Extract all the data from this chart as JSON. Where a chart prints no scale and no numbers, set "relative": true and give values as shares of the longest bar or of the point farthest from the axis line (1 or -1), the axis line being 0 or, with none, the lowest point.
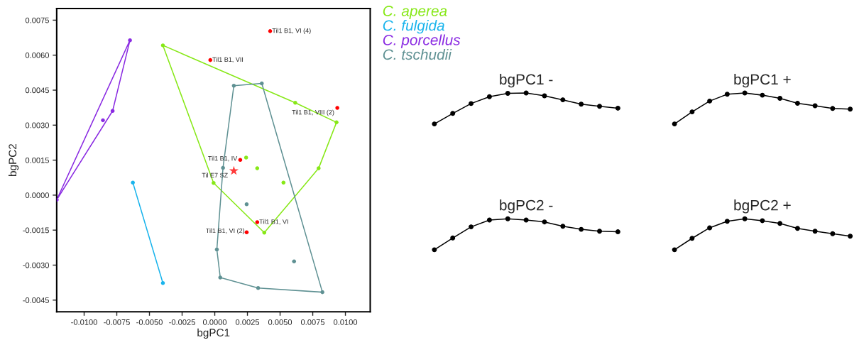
{
  "chart_data": [
    {
      "type": "scatter",
      "xlabel": "bgPC1",
      "ylabel": "bgPC2",
      "xlim": [
        -0.0121,
        0.0119
      ],
      "ylim": [
        -0.005,
        0.008
      ],
      "xticks": [
        {
          "value": -0.01,
          "label": "-0.0100"
        },
        {
          "value": -0.0075,
          "label": "-0.0075"
        },
        {
          "value": -0.005,
          "label": "-0.0050"
        },
        {
          "value": -0.0025,
          "label": "-0.0025"
        },
        {
          "value": 0,
          "label": "0.0000"
        },
        {
          "value": 0.0025,
          "label": "0.0025"
        },
        {
          "value": 0.005,
          "label": "0.0050"
        },
        {
          "value": 0.0075,
          "label": "0.0075"
        },
        {
          "value": 0.01,
          "label": "0.0100"
        }
      ],
      "yticks": [
        {
          "value": -0.0045,
          "label": "-0.0045"
        },
        {
          "value": -0.003,
          "label": "-0.0030"
        },
        {
          "value": -0.0015,
          "label": "-0.0015"
        },
        {
          "value": 0,
          "label": "0.0000"
        },
        {
          "value": 0.0015,
          "label": "0.0015"
        },
        {
          "value": 0.003,
          "label": "0.0030"
        },
        {
          "value": 0.0045,
          "label": "0.0045"
        },
        {
          "value": 0.006,
          "label": "0.0060"
        },
        {
          "value": 0.0075,
          "label": "0.0075"
        }
      ],
      "grid": false,
      "legend": "top right",
      "series": [
        {
          "type": "line",
          "color": "#87e817",
          "x": [
            -0.00397,
            0.00616,
            0.00932
          ],
          "values": [
            0.00642,
            0.00396,
            0.00312
          ]
        },
        {
          "type": "line",
          "color": "#87e817",
          "x": [
            -0.00397,
            -9e-05,
            0.00379,
            0.00795,
            0.00932
          ],
          "values": [
            0.00642,
            0.00052,
            -0.00161,
            0.00115,
            0.00312
          ]
        },
        {
          "type": "line",
          "color": "#1ab4ec",
          "x": [
            -0.00627,
            -0.00397
          ],
          "values": [
            0.00054,
            -0.00377
          ]
        },
        {
          "type": "line",
          "color": "#8a2be2",
          "x": [
            -0.0121,
            -0.00649
          ],
          "values": [
            -0.0002,
            0.00664
          ]
        },
        {
          "type": "line",
          "color": "#8a2be2",
          "x": [
            -0.0121,
            -0.00782,
            -0.00649
          ],
          "values": [
            -0.0002,
            0.00361,
            0.00664
          ]
        },
        {
          "type": "line",
          "color": "#5f9193",
          "x": [
            0.00016,
            0.00063,
            0.00146,
            0.0036,
            0.00824
          ],
          "values": [
            -0.00233,
            0.00117,
            0.00469,
            0.00479,
            -0.00416
          ]
        },
        {
          "type": "line",
          "color": "#5f9193",
          "x": [
            0.00016,
            0.00042,
            0.00332,
            0.00824
          ],
          "values": [
            -0.00233,
            -0.00353,
            -0.00398,
            -0.00416
          ]
        },
        {
          "type": "scatter",
          "name": "C. aperea",
          "color": "#87e817",
          "marker": "circle",
          "x": [
            -0.00397,
            0.00616,
            0.00932,
            0.00795,
            0.00379,
            -9e-05,
            0.0024,
            0.00325,
            0.00526
          ],
          "values": [
            0.00642,
            0.00396,
            0.00312,
            0.00115,
            -0.00161,
            0.00052,
            0.00161,
            0.00115,
            0.00054
          ]
        },
        {
          "type": "scatter",
          "name": "C. fulgida",
          "color": "#1ab4ec",
          "marker": "circle",
          "x": [
            -0.00627,
            -0.00397
          ],
          "values": [
            0.00054,
            -0.00377
          ]
        },
        {
          "type": "scatter",
          "name": "C. porcellus",
          "color": "#8a2be2",
          "marker": "circle",
          "x": [
            -0.00649,
            -0.00782,
            -0.00856,
            -0.0121
          ],
          "values": [
            0.00664,
            0.00361,
            0.00321,
            -0.0002
          ]
        },
        {
          "type": "scatter",
          "name": "C. tschudii",
          "color": "#5f9193",
          "marker": "circle",
          "x": [
            0.00146,
            0.0036,
            0.00824,
            0.00332,
            0.00042,
            0.00016,
            0.00063,
            0.00244,
            0.00607
          ],
          "values": [
            0.00469,
            0.00479,
            -0.00416,
            -0.00398,
            -0.00353,
            -0.00233,
            0.00117,
            -0.00039,
            -0.00284
          ]
        },
        {
          "type": "scatter",
          "color": "#ff0000",
          "marker": "circle",
          "x": [
            0.00424,
            -0.00034,
            0.00938,
            0.00195,
            0.00325,
            0.00244
          ],
          "values": [
            0.00703,
            0.00579,
            0.00374,
            0.00151,
            -0.00116,
            -0.00159
          ]
        },
        {
          "type": "scatter",
          "color": "#ff3b3b",
          "marker": "star",
          "x": [
            0.00146
          ],
          "values": [
            0.00104
          ]
        }
      ],
      "annotations": [
        {
          "text": "Til1 B1, VI (4)",
          "x": 0.00424,
          "y": 0.00703
        },
        {
          "text": "Til1 B1, VII",
          "x": -0.00034,
          "y": 0.00579
        },
        {
          "text": "Til1 B1, VIII (2)",
          "x": 0.00938,
          "y": 0.00374
        },
        {
          "text": "Til1 B1, IV",
          "x": 0.00195,
          "y": 0.00151
        },
        {
          "text": "Til E7 SZ",
          "x": 0.00146,
          "y": 0.00104
        },
        {
          "text": "Til1 B1, VI",
          "x": 0.00325,
          "y": -0.00116
        },
        {
          "text": "Til1 B1, VI (2)",
          "x": 0.00244,
          "y": -0.00159
        }
      ]
    },
    {
      "type": "line",
      "title": "bgPC1 -",
      "relative": true,
      "marker": "circle",
      "color": "#000000",
      "categories": [
        null,
        null,
        null,
        null,
        null,
        null,
        null,
        null,
        null,
        null,
        null
      ],
      "values": [
        0,
        0.34,
        0.66,
        0.88,
        0.99,
        1,
        0.91,
        0.78,
        0.64,
        0.57,
        0.51
      ]
    },
    {
      "type": "line",
      "title": "bgPC1 +",
      "relative": true,
      "marker": "circle",
      "color": "#000000",
      "categories": [
        null,
        null,
        null,
        null,
        null,
        null,
        null,
        null,
        null,
        null,
        null
      ],
      "values": [
        0,
        0.39,
        0.74,
        0.96,
        1,
        0.93,
        0.83,
        0.67,
        0.59,
        0.5,
        0.48
      ]
    },
    {
      "type": "line",
      "title": "bgPC2 -",
      "relative": true,
      "marker": "circle",
      "color": "#000000",
      "categories": [
        null,
        null,
        null,
        null,
        null,
        null,
        null,
        null,
        null,
        null,
        null
      ],
      "values": [
        0,
        0.38,
        0.74,
        0.96,
        1,
        0.96,
        0.9,
        0.76,
        0.66,
        0.6,
        0.58
      ]
    },
    {
      "type": "line",
      "title": "bgPC2 +",
      "relative": true,
      "marker": "circle",
      "color": "#000000",
      "categories": [
        null,
        null,
        null,
        null,
        null,
        null,
        null,
        null,
        null,
        null,
        null
      ],
      "values": [
        0,
        0.37,
        0.71,
        0.92,
        1,
        0.94,
        0.85,
        0.69,
        0.6,
        0.52,
        0.44
      ]
    }
  ]
}
